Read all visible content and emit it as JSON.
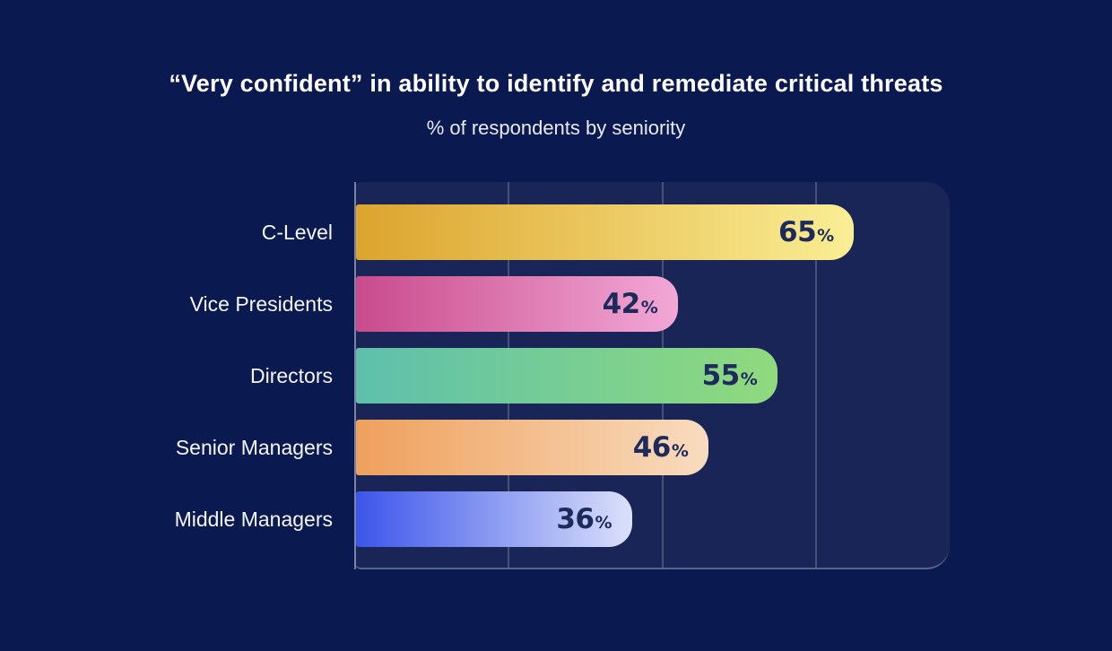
{
  "header": {
    "title": "“Very confident” in ability to identify and remediate critical threats",
    "subtitle": "% of respondents by seniority"
  },
  "chart_data": {
    "type": "bar",
    "orientation": "horizontal",
    "title": "“Very confident” in ability to identify and remediate critical threats",
    "subtitle": "% of respondents by seniority",
    "categories": [
      "C-Level",
      "Vice Presidents",
      "Directors",
      "Senior Managers",
      "Middle Managers"
    ],
    "values": [
      65,
      42,
      55,
      46,
      36
    ],
    "value_suffix": "%",
    "xlim": [
      0,
      77.5
    ],
    "gridlines": [
      20,
      40,
      60
    ],
    "grid": true,
    "legend_position": "none",
    "axis_tick_labels_visible": false,
    "bar_gradients": [
      {
        "from": "#DCA42E",
        "to": "#FAEE94"
      },
      {
        "from": "#C94B8D",
        "to": "#F2A8D6"
      },
      {
        "from": "#5EC0AC",
        "to": "#90DA7D"
      },
      {
        "from": "#EFA05D",
        "to": "#F8DCBF"
      },
      {
        "from": "#3D55E9",
        "to": "#DBE1FA"
      }
    ],
    "colors": {
      "page_background": "#0A1A50",
      "plot_panel_background": "#1A2557",
      "gridline": "#3C4875",
      "axis_line": "#AEB5C9",
      "title_text": "#FFFFFF",
      "subtitle_text": "#E9EBF4",
      "category_text": "#F4F6FA",
      "value_text": "#1C2A5C"
    }
  }
}
